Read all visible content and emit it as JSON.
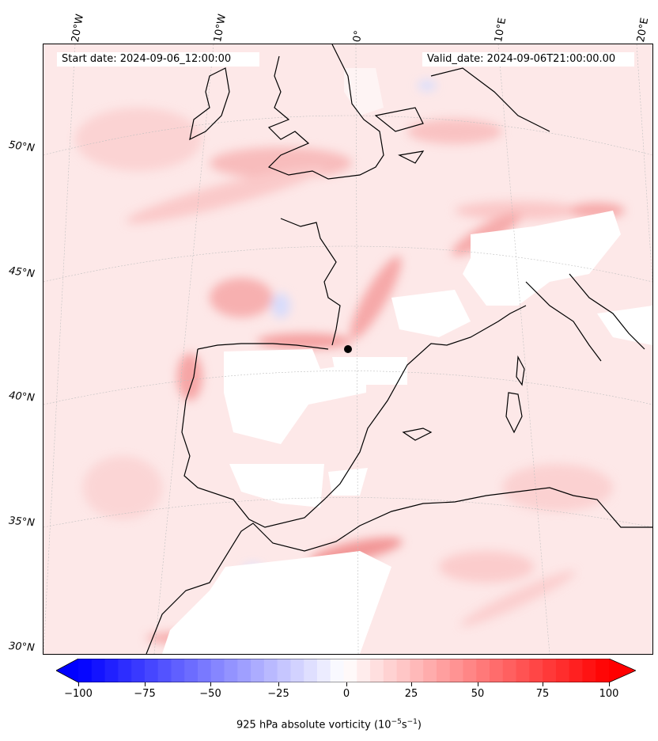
{
  "header": {
    "start_date": "Start date: 2024-09-06_12:00:00",
    "valid_date": "Valid_date: 2024-09-06T21:00:00.00"
  },
  "map": {
    "longitude_labels": [
      "20°W",
      "10°W",
      "0°",
      "10°E",
      "20°E"
    ],
    "latitude_labels": [
      "50°N",
      "45°N",
      "40°N",
      "35°N",
      "30°N"
    ],
    "colors": {
      "positive": "#ff0000",
      "negative": "#0000ff",
      "neutral": "#ffffff",
      "coast": "#000000"
    }
  },
  "colorbar": {
    "ticks": [
      "−100",
      "−75",
      "−50",
      "−25",
      "0",
      "25",
      "50",
      "75",
      "100"
    ],
    "title": "925 hPa absolute vorticity (10",
    "title_exp1": "−5",
    "title_mid": "s",
    "title_exp2": "−1",
    "title_end": ")"
  }
}
